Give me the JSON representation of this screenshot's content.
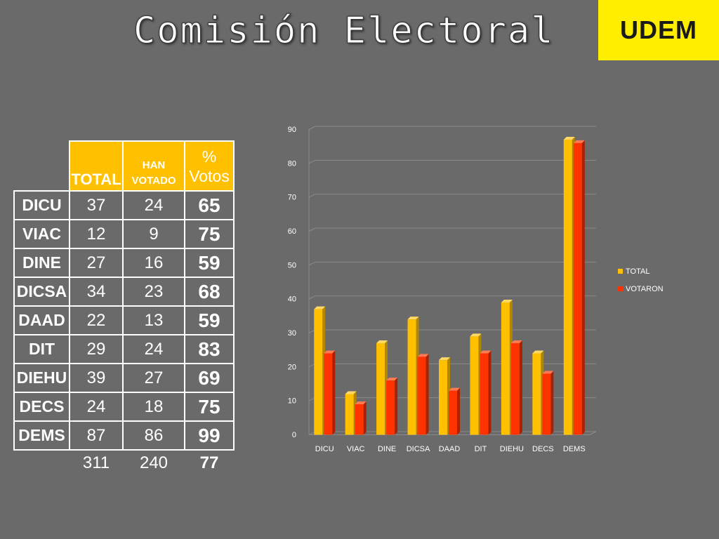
{
  "header": {
    "title": "Comisión Electoral",
    "logo_text": "UDEM"
  },
  "colors": {
    "background": "#6a6a6a",
    "logo_bg": "#ffee00",
    "header_cell": "#ffc000",
    "series_total": "#ffc000",
    "series_votaron": "#ff3300"
  },
  "table": {
    "headers": {
      "total": "TOTAL",
      "han_line1": "HAN",
      "han_line2": "VOTADO",
      "pct_line1": "%",
      "pct_line2": "Votos"
    },
    "rows": [
      {
        "dept": "DICU",
        "total": "37",
        "voted": "24",
        "pct": "65"
      },
      {
        "dept": "VIAC",
        "total": "12",
        "voted": "9",
        "pct": "75"
      },
      {
        "dept": "DINE",
        "total": "27",
        "voted": "16",
        "pct": "59"
      },
      {
        "dept": "DICSA",
        "total": "34",
        "voted": "23",
        "pct": "68"
      },
      {
        "dept": "DAAD",
        "total": "22",
        "voted": "13",
        "pct": "59"
      },
      {
        "dept": "DIT",
        "total": "29",
        "voted": "24",
        "pct": "83"
      },
      {
        "dept": "DIEHU",
        "total": "39",
        "voted": "27",
        "pct": "69"
      },
      {
        "dept": "DECS",
        "total": "24",
        "voted": "18",
        "pct": "75"
      },
      {
        "dept": "DEMS",
        "total": "87",
        "voted": "86",
        "pct": "99"
      }
    ],
    "summary": {
      "total": "311",
      "voted": "240",
      "pct": "77"
    }
  },
  "chart_data": {
    "type": "bar",
    "categories": [
      "DICU",
      "VIAC",
      "DINE",
      "DICSA",
      "DAAD",
      "DIT",
      "DIEHU",
      "DECS",
      "DEMS"
    ],
    "series": [
      {
        "name": "TOTAL",
        "values": [
          37,
          12,
          27,
          34,
          22,
          29,
          39,
          24,
          87
        ]
      },
      {
        "name": "VOTARON",
        "values": [
          24,
          9,
          16,
          23,
          13,
          24,
          27,
          18,
          86
        ]
      }
    ],
    "ylim": [
      0,
      90
    ],
    "yticks": [
      0,
      10,
      20,
      30,
      40,
      50,
      60,
      70,
      80,
      90
    ],
    "grid": true,
    "legend": "right",
    "style": "3d-bar"
  }
}
